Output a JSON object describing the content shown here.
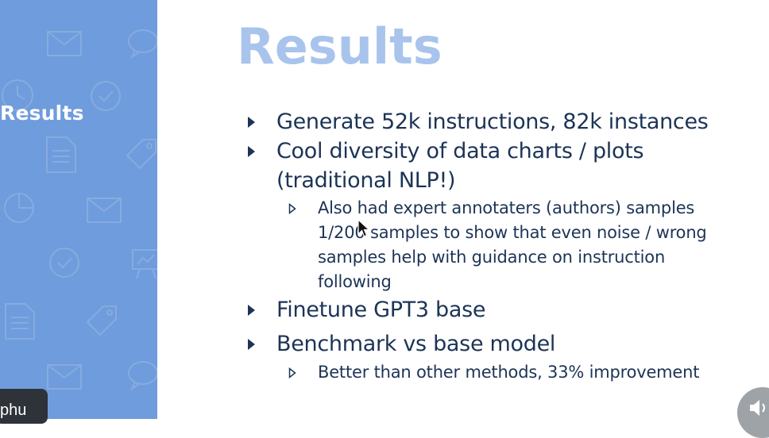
{
  "sidebar": {
    "title": "Results"
  },
  "slide": {
    "title": "Results",
    "bullets": [
      {
        "lines": [
          "Generate 52k instructions, 82k instances"
        ]
      },
      {
        "lines": [
          "Cool diversity of data charts / plots",
          "(traditional NLP!)"
        ]
      },
      {
        "lines": [
          "Finetune GPT3 base"
        ]
      },
      {
        "lines": [
          "Benchmark vs base model"
        ]
      }
    ],
    "sub_bullets": [
      {
        "lines": [
          "Also had expert annotaters (authors) samples",
          "1/200 samples to show that even noise / wrong",
          "samples help with guidance on instruction",
          "following"
        ]
      },
      {
        "lines": [
          "Better than other methods, 33% improvement"
        ]
      }
    ]
  },
  "presenter": {
    "name_fragment": "phu"
  },
  "colors": {
    "sidebar": "#6f9cdc",
    "title": "#a9c4ec",
    "text": "#1c3456"
  },
  "icons": [
    "envelope-icon",
    "chat-bubble-icon",
    "clock-icon",
    "check-circle-icon",
    "document-icon",
    "tag-icon",
    "pie-chart-icon",
    "presentation-board-icon",
    "mouse-cursor-icon",
    "speaker-icon"
  ]
}
